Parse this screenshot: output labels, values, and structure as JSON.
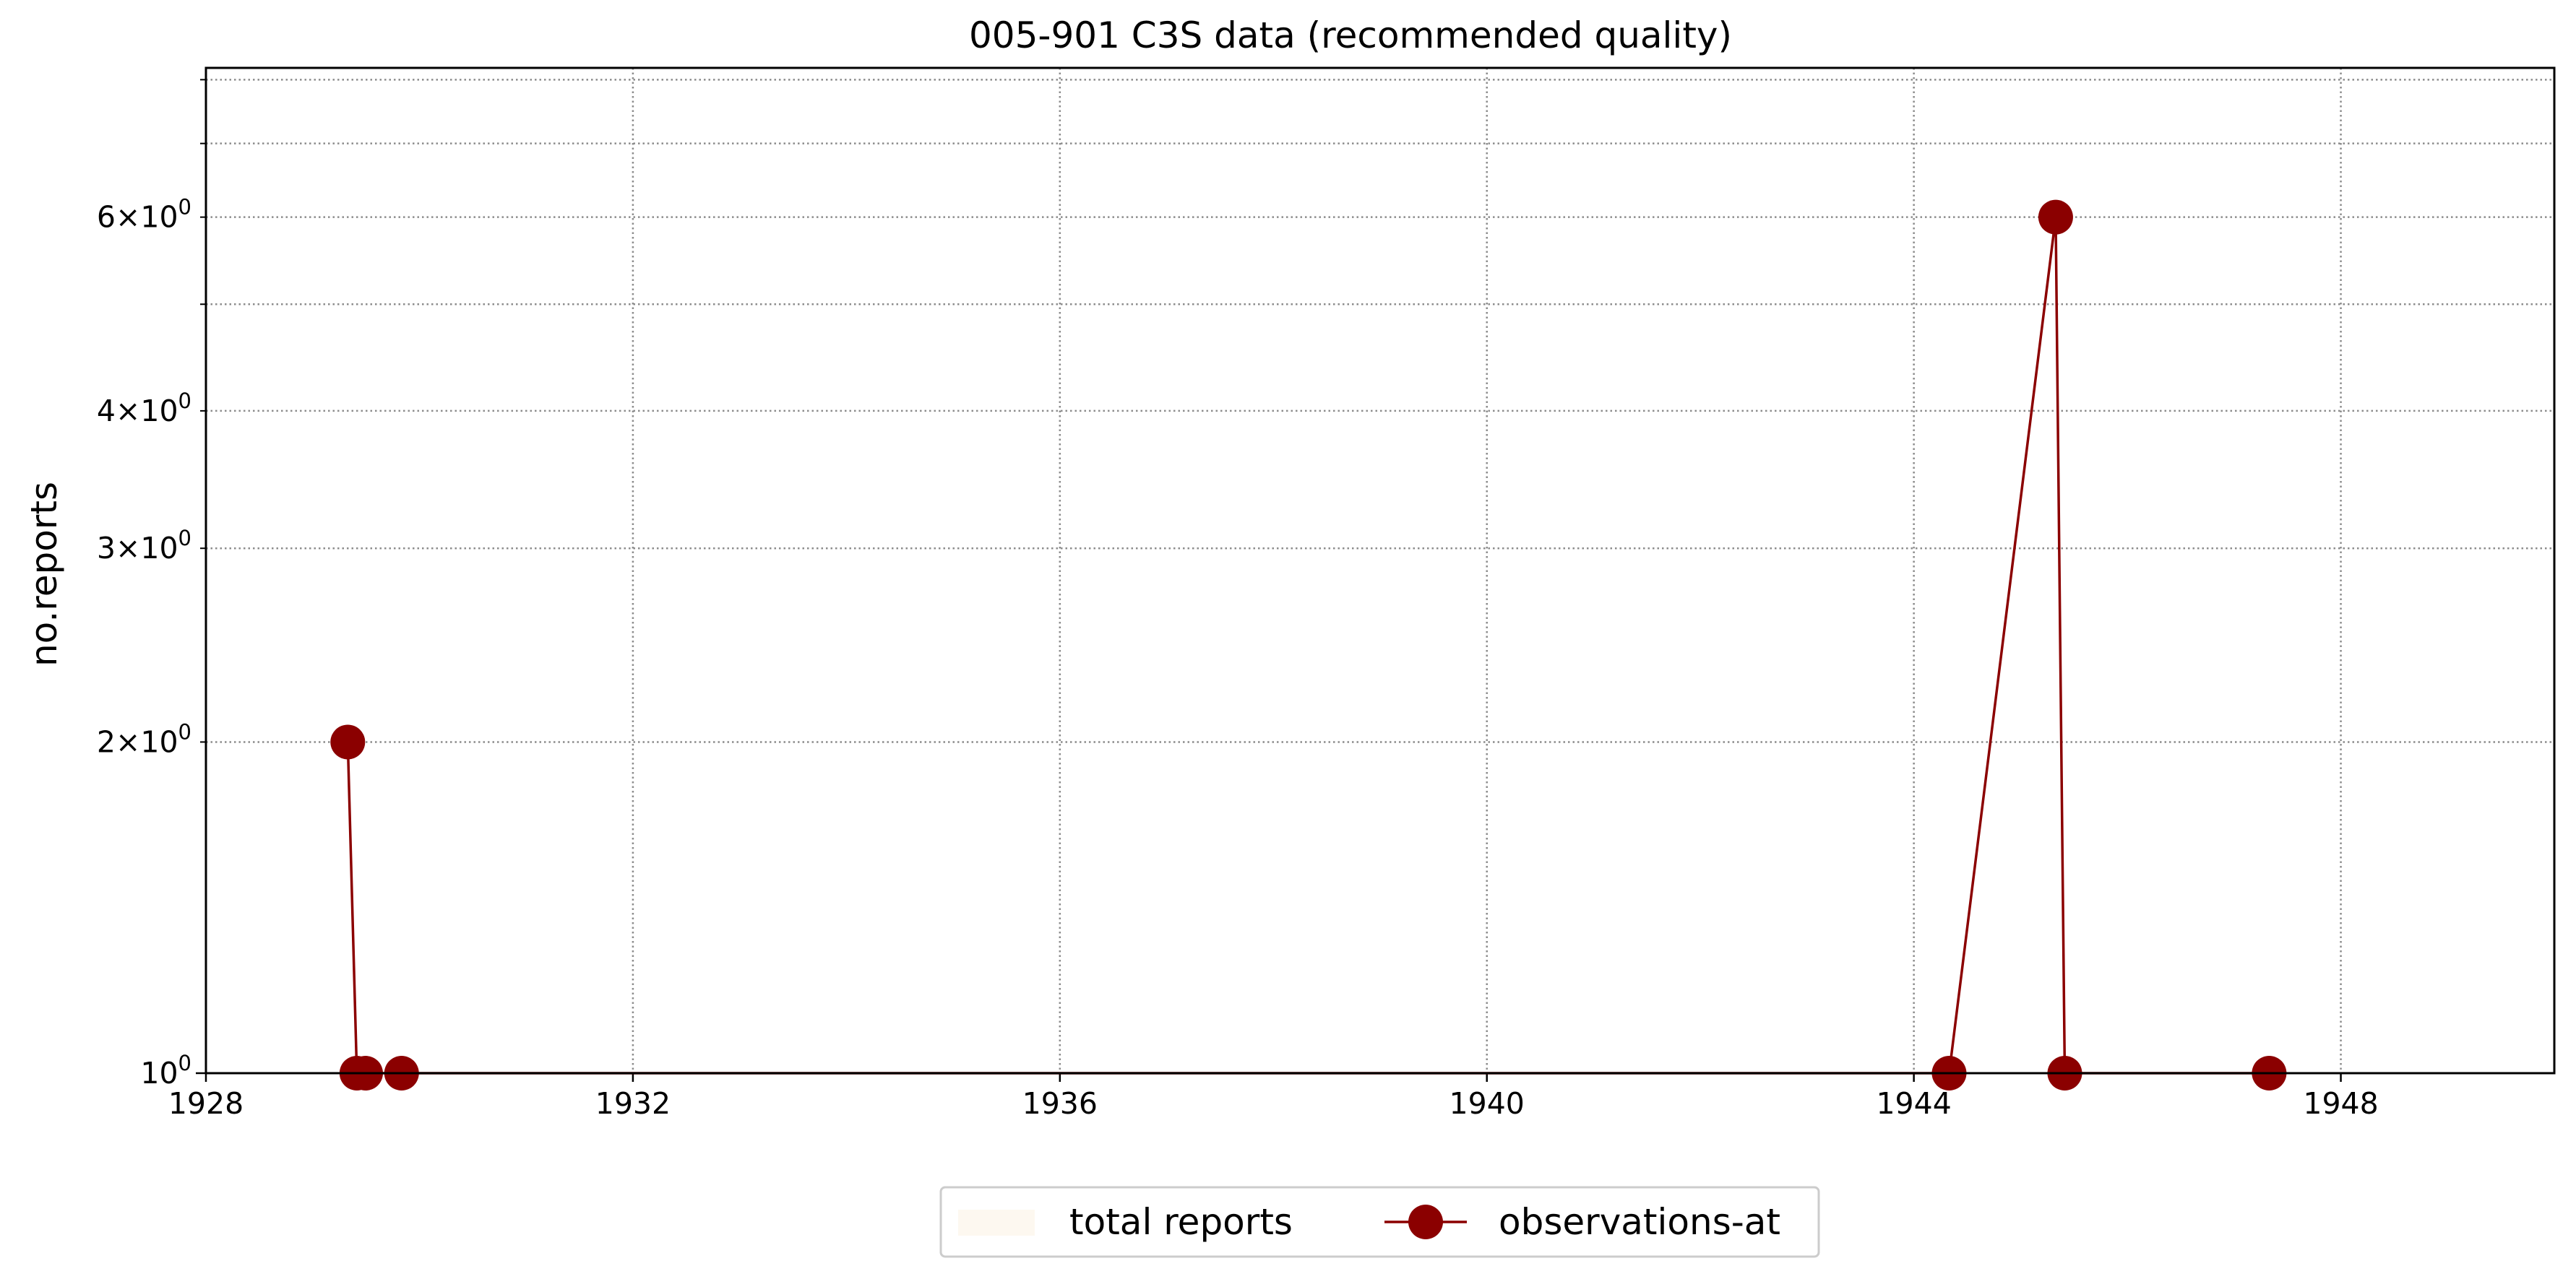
{
  "chart_data": {
    "type": "line",
    "title": "005-901 C3S data (recommended quality)",
    "xlabel": "",
    "ylabel": "no.reports",
    "x_axis": {
      "kind": "date",
      "range": [
        "1928-01-01",
        "1950-01-01"
      ],
      "ticks": [
        "1928",
        "1932",
        "1936",
        "1940",
        "1944",
        "1948"
      ]
    },
    "y_axis": {
      "scale": "log",
      "range": [
        1,
        8.2
      ],
      "major_ticks": [
        {
          "value": 1,
          "mantissa": "",
          "exponent": "0",
          "base": "10"
        }
      ],
      "minor_ticks": [
        {
          "value": 2,
          "mantissa": "2",
          "exponent": "0",
          "base": "10"
        },
        {
          "value": 3,
          "mantissa": "3",
          "exponent": "0",
          "base": "10"
        },
        {
          "value": 4,
          "mantissa": "4",
          "exponent": "0",
          "base": "10"
        },
        {
          "value": 5,
          "mantissa": "",
          "exponent": "",
          "base": ""
        },
        {
          "value": 6,
          "mantissa": "6",
          "exponent": "0",
          "base": "10"
        },
        {
          "value": 7,
          "mantissa": "",
          "exponent": "",
          "base": ""
        },
        {
          "value": 8,
          "mantissa": "",
          "exponent": "",
          "base": ""
        }
      ]
    },
    "grid": true,
    "legend_placement": "bottom-center",
    "times_sign": "×",
    "series": [
      {
        "name": "total reports",
        "kind": "area",
        "color": "#fdf8f0",
        "points": []
      },
      {
        "name": "observations-at",
        "kind": "line-marker",
        "color": "#8b0000",
        "points": [
          {
            "x": "1929-05-01",
            "y": 2
          },
          {
            "x": "1929-06-01",
            "y": 1
          },
          {
            "x": "1929-07-01",
            "y": 1
          },
          {
            "x": "1929-11-01",
            "y": 1
          },
          {
            "x": "1944-05-01",
            "y": 1
          },
          {
            "x": "1945-05-01",
            "y": 6
          },
          {
            "x": "1945-06-01",
            "y": 1
          },
          {
            "x": "1947-05-01",
            "y": 1
          }
        ]
      }
    ]
  }
}
